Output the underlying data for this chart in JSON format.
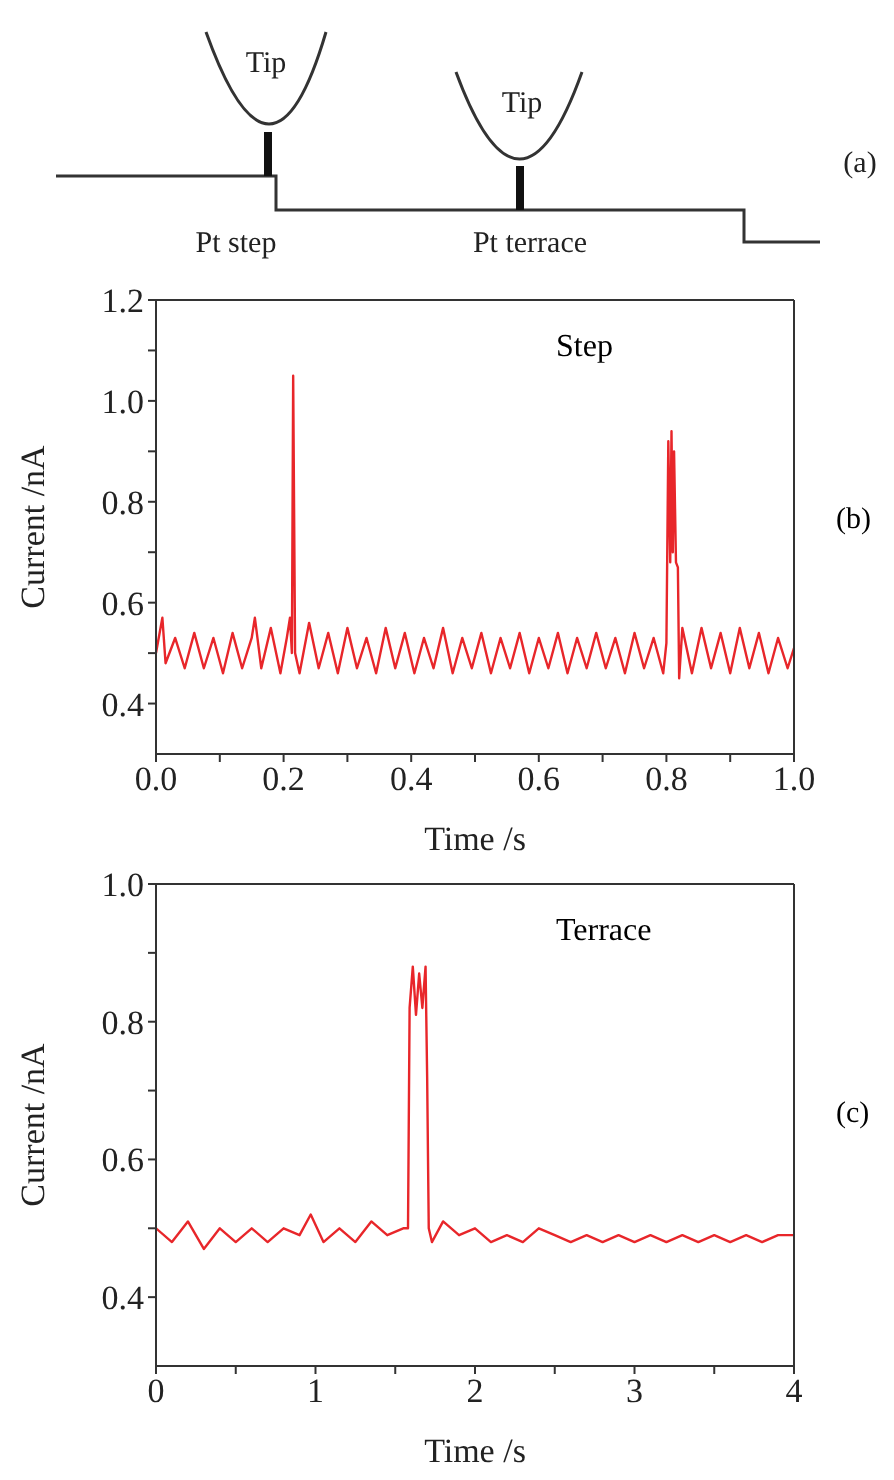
{
  "chart_data": [
    {
      "type": "other",
      "annotations": [
        "Tip",
        "Tip",
        "Pt step",
        "Pt terrace",
        "(a)"
      ]
    },
    {
      "type": "line",
      "xlabel": "Time /s",
      "ylabel": "Current /nA",
      "annotations": [
        "Step",
        "(b)"
      ],
      "xlim": [
        0,
        1
      ],
      "ylim": [
        0.3,
        1.2
      ],
      "xticks": [
        {
          "value": 0,
          "label": "0.0"
        },
        {
          "value": 0.1,
          "label": null
        },
        0.2,
        {
          "value": 0.3,
          "label": null
        },
        0.4,
        {
          "value": 0.5,
          "label": null
        },
        0.6,
        {
          "value": 0.7,
          "label": null
        },
        0.8,
        {
          "value": 0.9,
          "label": null
        },
        {
          "value": 1,
          "label": "1.0"
        }
      ],
      "yticks": [
        0.4,
        {
          "value": 0.5,
          "label": null
        },
        0.6,
        {
          "value": 0.7,
          "label": null
        },
        0.8,
        {
          "value": 0.9,
          "label": null
        },
        {
          "value": 1,
          "label": "1.0"
        },
        {
          "value": 1.1,
          "label": null
        },
        1.2
      ],
      "marker": "none",
      "line_style": "solid",
      "series": [
        {
          "color": "#e8262a",
          "x": [
            0,
            0.01,
            0.015,
            0.03,
            0.045,
            0.06,
            0.075,
            0.09,
            0.105,
            0.12,
            0.135,
            0.15,
            0.155,
            0.165,
            0.18,
            0.195,
            0.205,
            0.21,
            0.213,
            0.215,
            0.218,
            0.225,
            0.24,
            0.255,
            0.27,
            0.285,
            0.3,
            0.315,
            0.33,
            0.345,
            0.36,
            0.375,
            0.39,
            0.405,
            0.42,
            0.435,
            0.45,
            0.465,
            0.48,
            0.495,
            0.51,
            0.525,
            0.54,
            0.555,
            0.57,
            0.585,
            0.6,
            0.615,
            0.63,
            0.645,
            0.66,
            0.675,
            0.69,
            0.705,
            0.72,
            0.735,
            0.75,
            0.765,
            0.78,
            0.795,
            0.8,
            0.803,
            0.806,
            0.808,
            0.81,
            0.812,
            0.815,
            0.818,
            0.82,
            0.825,
            0.84,
            0.855,
            0.87,
            0.885,
            0.9,
            0.915,
            0.93,
            0.945,
            0.96,
            0.975,
            0.99,
            1
          ],
          "values": [
            0.5,
            0.57,
            0.48,
            0.53,
            0.47,
            0.54,
            0.47,
            0.53,
            0.46,
            0.54,
            0.47,
            0.53,
            0.57,
            0.47,
            0.55,
            0.46,
            0.53,
            0.57,
            0.5,
            1.05,
            0.5,
            0.46,
            0.56,
            0.47,
            0.54,
            0.46,
            0.55,
            0.47,
            0.53,
            0.46,
            0.55,
            0.47,
            0.54,
            0.46,
            0.53,
            0.47,
            0.55,
            0.46,
            0.53,
            0.47,
            0.54,
            0.46,
            0.53,
            0.47,
            0.54,
            0.46,
            0.53,
            0.47,
            0.54,
            0.46,
            0.53,
            0.47,
            0.54,
            0.47,
            0.53,
            0.46,
            0.54,
            0.47,
            0.53,
            0.46,
            0.52,
            0.92,
            0.68,
            0.94,
            0.7,
            0.9,
            0.68,
            0.67,
            0.45,
            0.55,
            0.46,
            0.55,
            0.47,
            0.54,
            0.46,
            0.55,
            0.47,
            0.54,
            0.46,
            0.53,
            0.47,
            0.51
          ]
        }
      ]
    },
    {
      "type": "line",
      "xlabel": "Time /s",
      "ylabel": "Current /nA",
      "annotations": [
        "Terrace",
        "(c)"
      ],
      "xlim": [
        0,
        4
      ],
      "ylim": [
        0.3,
        1.0
      ],
      "xticks": [
        0,
        {
          "value": 0.5,
          "label": null
        },
        1,
        {
          "value": 1.5,
          "label": null
        },
        2,
        {
          "value": 2.5,
          "label": null
        },
        3,
        {
          "value": 3.5,
          "label": null
        },
        4
      ],
      "yticks": [
        0.4,
        {
          "value": 0.5,
          "label": null
        },
        0.6,
        {
          "value": 0.7,
          "label": null
        },
        0.8,
        {
          "value": 0.9,
          "label": null
        },
        {
          "value": 1,
          "label": "1.0"
        }
      ],
      "marker": "none",
      "line_style": "solid",
      "series": [
        {
          "color": "#e8262a",
          "x": [
            0,
            0.1,
            0.2,
            0.3,
            0.4,
            0.5,
            0.6,
            0.7,
            0.8,
            0.9,
            0.97,
            1.05,
            1.15,
            1.25,
            1.35,
            1.45,
            1.55,
            1.58,
            1.59,
            1.61,
            1.63,
            1.65,
            1.67,
            1.69,
            1.7,
            1.71,
            1.73,
            1.8,
            1.9,
            2,
            2.1,
            2.2,
            2.3,
            2.4,
            2.5,
            2.6,
            2.7,
            2.8,
            2.9,
            3,
            3.1,
            3.2,
            3.3,
            3.4,
            3.5,
            3.6,
            3.7,
            3.8,
            3.9,
            4
          ],
          "values": [
            0.5,
            0.48,
            0.51,
            0.47,
            0.5,
            0.48,
            0.5,
            0.48,
            0.5,
            0.49,
            0.52,
            0.48,
            0.5,
            0.48,
            0.51,
            0.49,
            0.5,
            0.5,
            0.82,
            0.88,
            0.81,
            0.87,
            0.82,
            0.88,
            0.72,
            0.5,
            0.48,
            0.51,
            0.49,
            0.5,
            0.48,
            0.49,
            0.48,
            0.5,
            0.49,
            0.48,
            0.49,
            0.48,
            0.49,
            0.48,
            0.49,
            0.48,
            0.49,
            0.48,
            0.49,
            0.48,
            0.49,
            0.48,
            0.49,
            0.49
          ]
        }
      ]
    }
  ]
}
